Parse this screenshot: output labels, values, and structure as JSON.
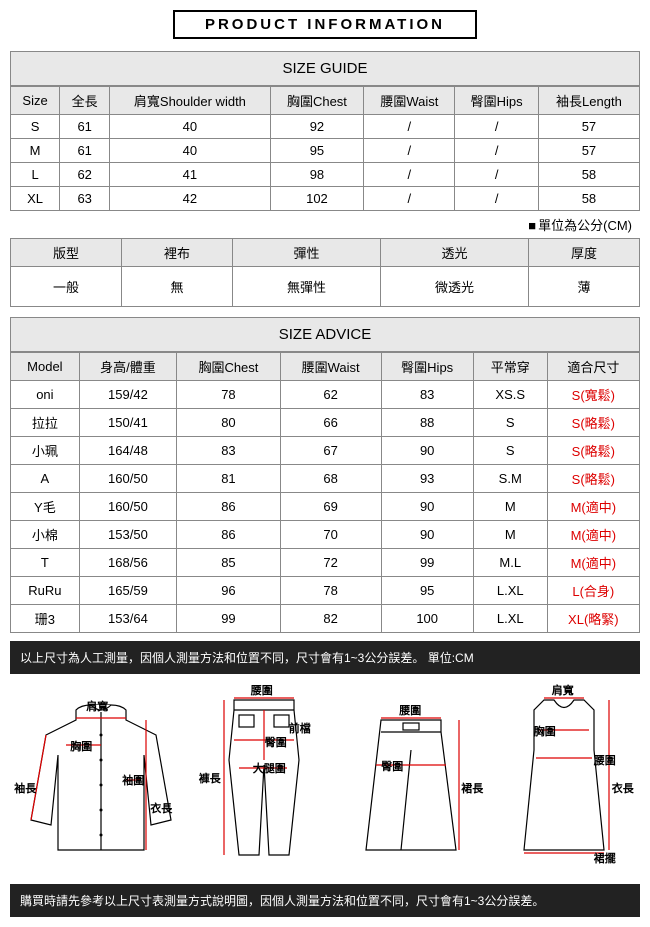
{
  "header": "PRODUCT INFORMATION",
  "sizeGuide": {
    "title": "SIZE GUIDE",
    "columns": [
      "Size",
      "全長",
      "肩寬Shoulder width",
      "胸圍Chest",
      "腰圍Waist",
      "臀圍Hips",
      "袖長Length"
    ],
    "rows": [
      [
        "S",
        "61",
        "40",
        "92",
        "/",
        "/",
        "57"
      ],
      [
        "M",
        "61",
        "40",
        "95",
        "/",
        "/",
        "57"
      ],
      [
        "L",
        "62",
        "41",
        "98",
        "/",
        "/",
        "58"
      ],
      [
        "XL",
        "63",
        "42",
        "102",
        "/",
        "/",
        "58"
      ]
    ],
    "unitNote": "單位為公分(CM)"
  },
  "fabric": {
    "columns": [
      "版型",
      "裡布",
      "彈性",
      "透光",
      "厚度"
    ],
    "values": [
      "一般",
      "無",
      "無彈性",
      "微透光",
      "薄"
    ]
  },
  "sizeAdvice": {
    "title": "SIZE ADVICE",
    "columns": [
      "Model",
      "身高/體重",
      "胸圍Chest",
      "腰圍Waist",
      "臀圍Hips",
      "平常穿",
      "適合尺寸"
    ],
    "rows": [
      [
        "oni",
        "159/42",
        "78",
        "62",
        "83",
        "XS.S",
        "S(寬鬆)"
      ],
      [
        "拉拉",
        "150/41",
        "80",
        "66",
        "88",
        "S",
        "S(略鬆)"
      ],
      [
        "小珮",
        "164/48",
        "83",
        "67",
        "90",
        "S",
        "S(略鬆)"
      ],
      [
        "A",
        "160/50",
        "81",
        "68",
        "93",
        "S.M",
        "S(略鬆)"
      ],
      [
        "Y毛",
        "160/50",
        "86",
        "69",
        "90",
        "M",
        "M(適中)"
      ],
      [
        "小棉",
        "153/50",
        "86",
        "70",
        "90",
        "M",
        "M(適中)"
      ],
      [
        "T",
        "168/56",
        "85",
        "72",
        "99",
        "M.L",
        "M(適中)"
      ],
      [
        "RuRu",
        "165/59",
        "96",
        "78",
        "95",
        "L.XL",
        "L(合身)"
      ],
      [
        "珊3",
        "153/64",
        "99",
        "82",
        "100",
        "L.XL",
        "XL(略緊)"
      ]
    ]
  },
  "note1": "以上尺寸為人工測量，因個人測量方法和位置不同，尺寸會有1~3公分誤差。 單位:CM",
  "note2": "購買時請先參考以上尺寸表測量方式說明圖，因個人測量方法和位置不同，尺寸會有1~3公分誤差。",
  "diagramLabels": {
    "shirt": {
      "shoulder": "肩寬",
      "chest": "胸圍",
      "sleeve": "袖長",
      "cuff": "袖圍",
      "length": "衣長"
    },
    "pants": {
      "waist": "腰圍",
      "front": "前檔",
      "hip": "臀圍",
      "thigh": "大腿圍",
      "length": "褲長"
    },
    "skirt": {
      "waist": "腰圍",
      "hip": "臀圍",
      "length": "裙長"
    },
    "dress": {
      "shoulder": "肩寬",
      "chest": "胸圍",
      "waist": "腰圍",
      "length": "衣長",
      "hem": "裙擺"
    }
  },
  "colors": {
    "measureLine": "#d00",
    "border": "#888",
    "greyBg": "#e8e8e8",
    "darkBar": "#222"
  }
}
